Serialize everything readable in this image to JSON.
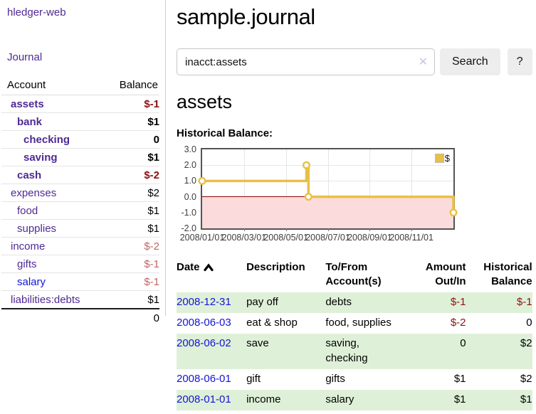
{
  "app": {
    "brand": "hledger-web"
  },
  "sidebar": {
    "journal_link": "Journal",
    "col_account": "Account",
    "col_balance": "Balance",
    "accounts": [
      {
        "name": "assets",
        "balance": "$-1"
      },
      {
        "name": "bank",
        "balance": "$1"
      },
      {
        "name": "checking",
        "balance": "0"
      },
      {
        "name": "saving",
        "balance": "$1"
      },
      {
        "name": "cash",
        "balance": "$-2"
      },
      {
        "name": "expenses",
        "balance": "$2"
      },
      {
        "name": "food",
        "balance": "$1"
      },
      {
        "name": "supplies",
        "balance": "$1"
      },
      {
        "name": "income",
        "balance": "$-2"
      },
      {
        "name": "gifts",
        "balance": "$-1"
      },
      {
        "name": "salary",
        "balance": "$-1"
      },
      {
        "name": "liabilities:debts",
        "balance": "$1"
      }
    ],
    "total": "0"
  },
  "main": {
    "title": "sample.journal",
    "search": {
      "value": "inacct:assets",
      "clear_icon": "✕",
      "search_button": "Search",
      "help_button": "?"
    },
    "account_title": "assets",
    "chart_title": "Historical Balance:"
  },
  "chart_data": {
    "type": "line",
    "title": "Historical Balance:",
    "step": true,
    "ylim": [
      -2,
      3
    ],
    "yticks": [
      "3.0",
      "2.0",
      "1.0",
      "0.0",
      "-1.0",
      "-2.0"
    ],
    "xticks": [
      {
        "label": "2008/01/01",
        "pos": 0
      },
      {
        "label": "2008/03/01",
        "pos": 0.1667
      },
      {
        "label": "2008/05/01",
        "pos": 0.3333
      },
      {
        "label": "2008/07/01",
        "pos": 0.5
      },
      {
        "label": "2008/09/01",
        "pos": 0.6667
      },
      {
        "label": "2008/11/01",
        "pos": 0.8333
      }
    ],
    "series": [
      {
        "name": "$",
        "color": "#e9c044",
        "points": [
          {
            "date": "2008-01-01",
            "pos": 0,
            "value": 1
          },
          {
            "date": "2008-06-01",
            "pos": 0.415,
            "value": 2
          },
          {
            "date": "2008-06-03",
            "pos": 0.423,
            "value": 0
          },
          {
            "date": "2008-12-31",
            "pos": 1,
            "value": -1
          }
        ]
      }
    ],
    "grid": true,
    "grid_color": "#e6e6e6",
    "negative_region_color": "#fbdbdb",
    "zero_line_color": "#8b0000",
    "legend": {
      "label": "$",
      "position": "top-right"
    }
  },
  "register": {
    "headers": {
      "date": "Date",
      "description": "Description",
      "tofrom": "To/From Account(s)",
      "amount": "Amount Out/In",
      "balance": "Historical Balance"
    },
    "rows": [
      {
        "date": "2008-12-31",
        "description": "pay off",
        "accounts": "debts",
        "amount": "$-1",
        "balance": "$-1"
      },
      {
        "date": "2008-06-03",
        "description": "eat & shop",
        "accounts": "food, supplies",
        "amount": "$-2",
        "balance": "0"
      },
      {
        "date": "2008-06-02",
        "description": "save",
        "accounts": "saving,\nchecking",
        "amount": "0",
        "balance": "$2"
      },
      {
        "date": "2008-06-01",
        "description": "gift",
        "accounts": "gifts",
        "amount": "$1",
        "balance": "$2"
      },
      {
        "date": "2008-01-01",
        "description": "income",
        "accounts": "salary",
        "amount": "$1",
        "balance": "$1"
      }
    ]
  }
}
